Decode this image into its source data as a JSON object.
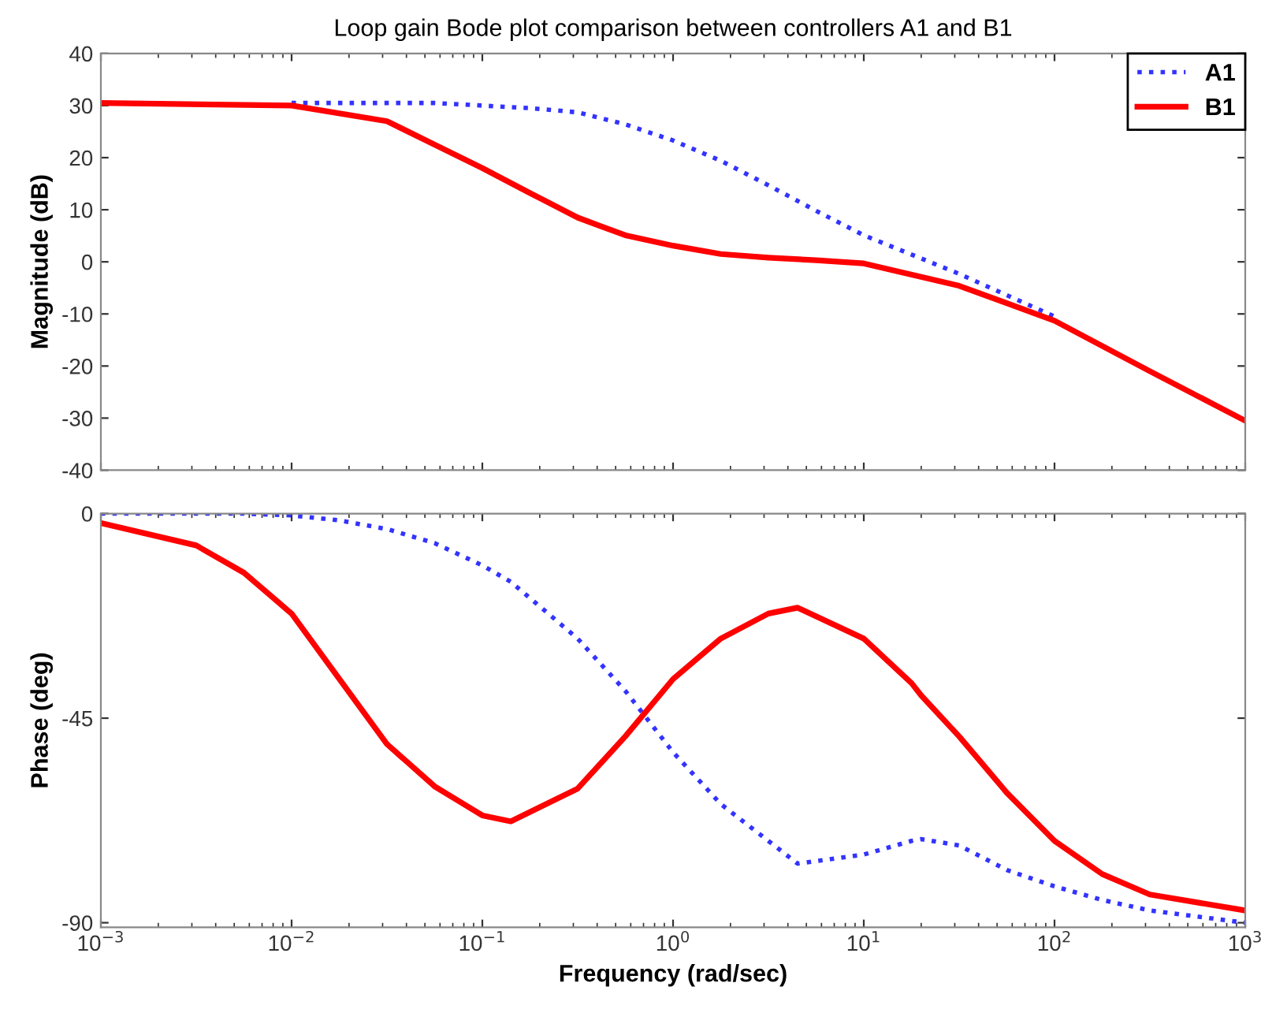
{
  "chart_data": [
    {
      "type": "line",
      "title": "Loop gain Bode plot comparison between controllers A1 and B1",
      "ylabel": "Magnitude (dB)",
      "x": [
        0.001,
        0.01,
        0.0316,
        0.0562,
        0.1,
        0.178,
        0.316,
        0.562,
        1,
        1.78,
        3.16,
        5.62,
        10,
        31.6,
        100,
        316,
        1000
      ],
      "series": [
        {
          "name": "A1",
          "color": "#3333ff",
          "line_style": "dotted",
          "values": [
            null,
            30.5,
            30.5,
            30.5,
            30,
            29.5,
            28.7,
            26.4,
            23.3,
            19.4,
            14.7,
            9.8,
            5.1,
            -2.3,
            -10.5,
            null,
            null
          ]
        },
        {
          "name": "B1",
          "color": "#ff0000",
          "line_style": "solid",
          "values": [
            30.5,
            30,
            27,
            22.5,
            18,
            13.2,
            8.5,
            5.1,
            3.1,
            1.5,
            0.8,
            0.3,
            -0.3,
            -4.6,
            -11.3,
            -21,
            -30.5
          ]
        }
      ],
      "log": "x",
      "xlim": [
        0.001,
        1000
      ],
      "ylim": [
        -40,
        40
      ],
      "yticks": [
        -40,
        -30,
        -20,
        -10,
        0,
        10,
        20,
        30,
        40
      ],
      "xticks": [
        {
          "value": 0.001,
          "label": null
        },
        {
          "value": 0.01,
          "label": null
        },
        {
          "value": 0.1,
          "label": null
        },
        {
          "value": 1,
          "label": null
        },
        {
          "value": 10,
          "label": null
        },
        {
          "value": 100,
          "label": null
        },
        {
          "value": 1000,
          "label": null
        }
      ],
      "tick_labels": "y",
      "grid": false,
      "legend": "top right"
    },
    {
      "type": "line",
      "xlabel": "Frequency (rad/sec)",
      "ylabel": "Phase (deg)",
      "x": [
        0.001,
        0.00316,
        0.00562,
        0.01,
        0.0178,
        0.0316,
        0.0562,
        0.1,
        0.141,
        0.316,
        0.562,
        1,
        1.78,
        3.16,
        4.5,
        10,
        17.8,
        20,
        31.6,
        56.2,
        100,
        178,
        316,
        1000
      ],
      "series": [
        {
          "color": "#3333ff",
          "line_style": "dotted",
          "values": [
            0,
            0,
            0,
            -0.4,
            -1.5,
            -3.4,
            -6.5,
            -11.4,
            -15,
            -27.5,
            -39,
            -52.5,
            -63.9,
            -72,
            -77,
            -75,
            -72,
            -71.6,
            -73,
            -78.4,
            -82,
            -85,
            -87.3,
            -90
          ]
        },
        {
          "color": "#ff0000",
          "line_style": "solid",
          "values": [
            -2.1,
            -7,
            -13,
            -22,
            -36.4,
            -50.7,
            -60,
            -66.4,
            -67.7,
            -60.5,
            -49,
            -36.4,
            -27.5,
            -22,
            -20.7,
            -27.5,
            -37.3,
            -40,
            -49,
            -61.4,
            -72,
            -79.3,
            -83.8,
            -87.3
          ]
        }
      ],
      "log": "x",
      "xlim": [
        0.001,
        1000
      ],
      "ylim": [
        -91,
        0
      ],
      "yticks": [
        -90,
        -45,
        0
      ],
      "xticks": [
        {
          "value": 0.001,
          "label": "10$^{−3}$"
        },
        {
          "value": 0.01,
          "label": "10$^{−2}$"
        },
        {
          "value": 0.1,
          "label": "10$^{−1}$"
        },
        {
          "value": 1,
          "label": "10$^{0}$"
        },
        {
          "value": 10,
          "label": "10$^{1}$"
        },
        {
          "value": 100,
          "label": "10$^{2}$"
        },
        {
          "value": 1000,
          "label": "10$^{3}$"
        }
      ],
      "grid": false,
      "legend": false
    }
  ]
}
